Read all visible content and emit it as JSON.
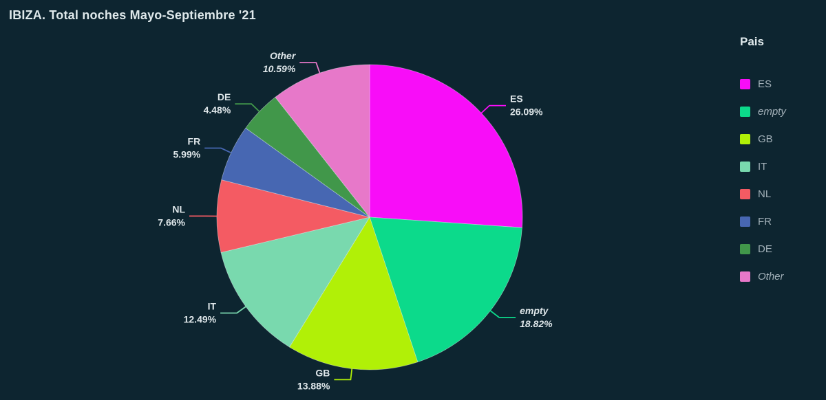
{
  "title": "IBIZA. Total noches Mayo-Septiembre '21",
  "legend": {
    "title": "Pais",
    "position": "right"
  },
  "chart_data": {
    "type": "pie",
    "title": "IBIZA. Total noches Mayo-Septiembre '21",
    "legend_title": "Pais",
    "legend_position": "right",
    "start_angle_deg": 0,
    "direction": "clockwise",
    "value_format": "percent",
    "labels_show": true,
    "slices": [
      {
        "label": "ES",
        "value": 26.09,
        "display": "26.09%",
        "color": "#f80df8",
        "italic": false
      },
      {
        "label": "empty",
        "value": 18.82,
        "display": "18.82%",
        "color": "#0cda8b",
        "italic": true
      },
      {
        "label": "GB",
        "value": 13.88,
        "display": "13.88%",
        "color": "#b1f007",
        "italic": false
      },
      {
        "label": "IT",
        "value": 12.49,
        "display": "12.49%",
        "color": "#79d9ae",
        "italic": false
      },
      {
        "label": "NL",
        "value": 7.66,
        "display": "7.66%",
        "color": "#f45b63",
        "italic": false
      },
      {
        "label": "FR",
        "value": 5.99,
        "display": "5.99%",
        "color": "#4767b2",
        "italic": false
      },
      {
        "label": "DE",
        "value": 4.48,
        "display": "4.48%",
        "color": "#41974a",
        "italic": false
      },
      {
        "label": "Other",
        "value": 10.59,
        "display": "10.59%",
        "color": "#e778c9",
        "italic": true
      }
    ]
  },
  "colors": {
    "background": "#0d2530",
    "title_text": "#dfe9eb",
    "label_text": "#dfe7ea",
    "legend_text": "#a3b1b9"
  }
}
